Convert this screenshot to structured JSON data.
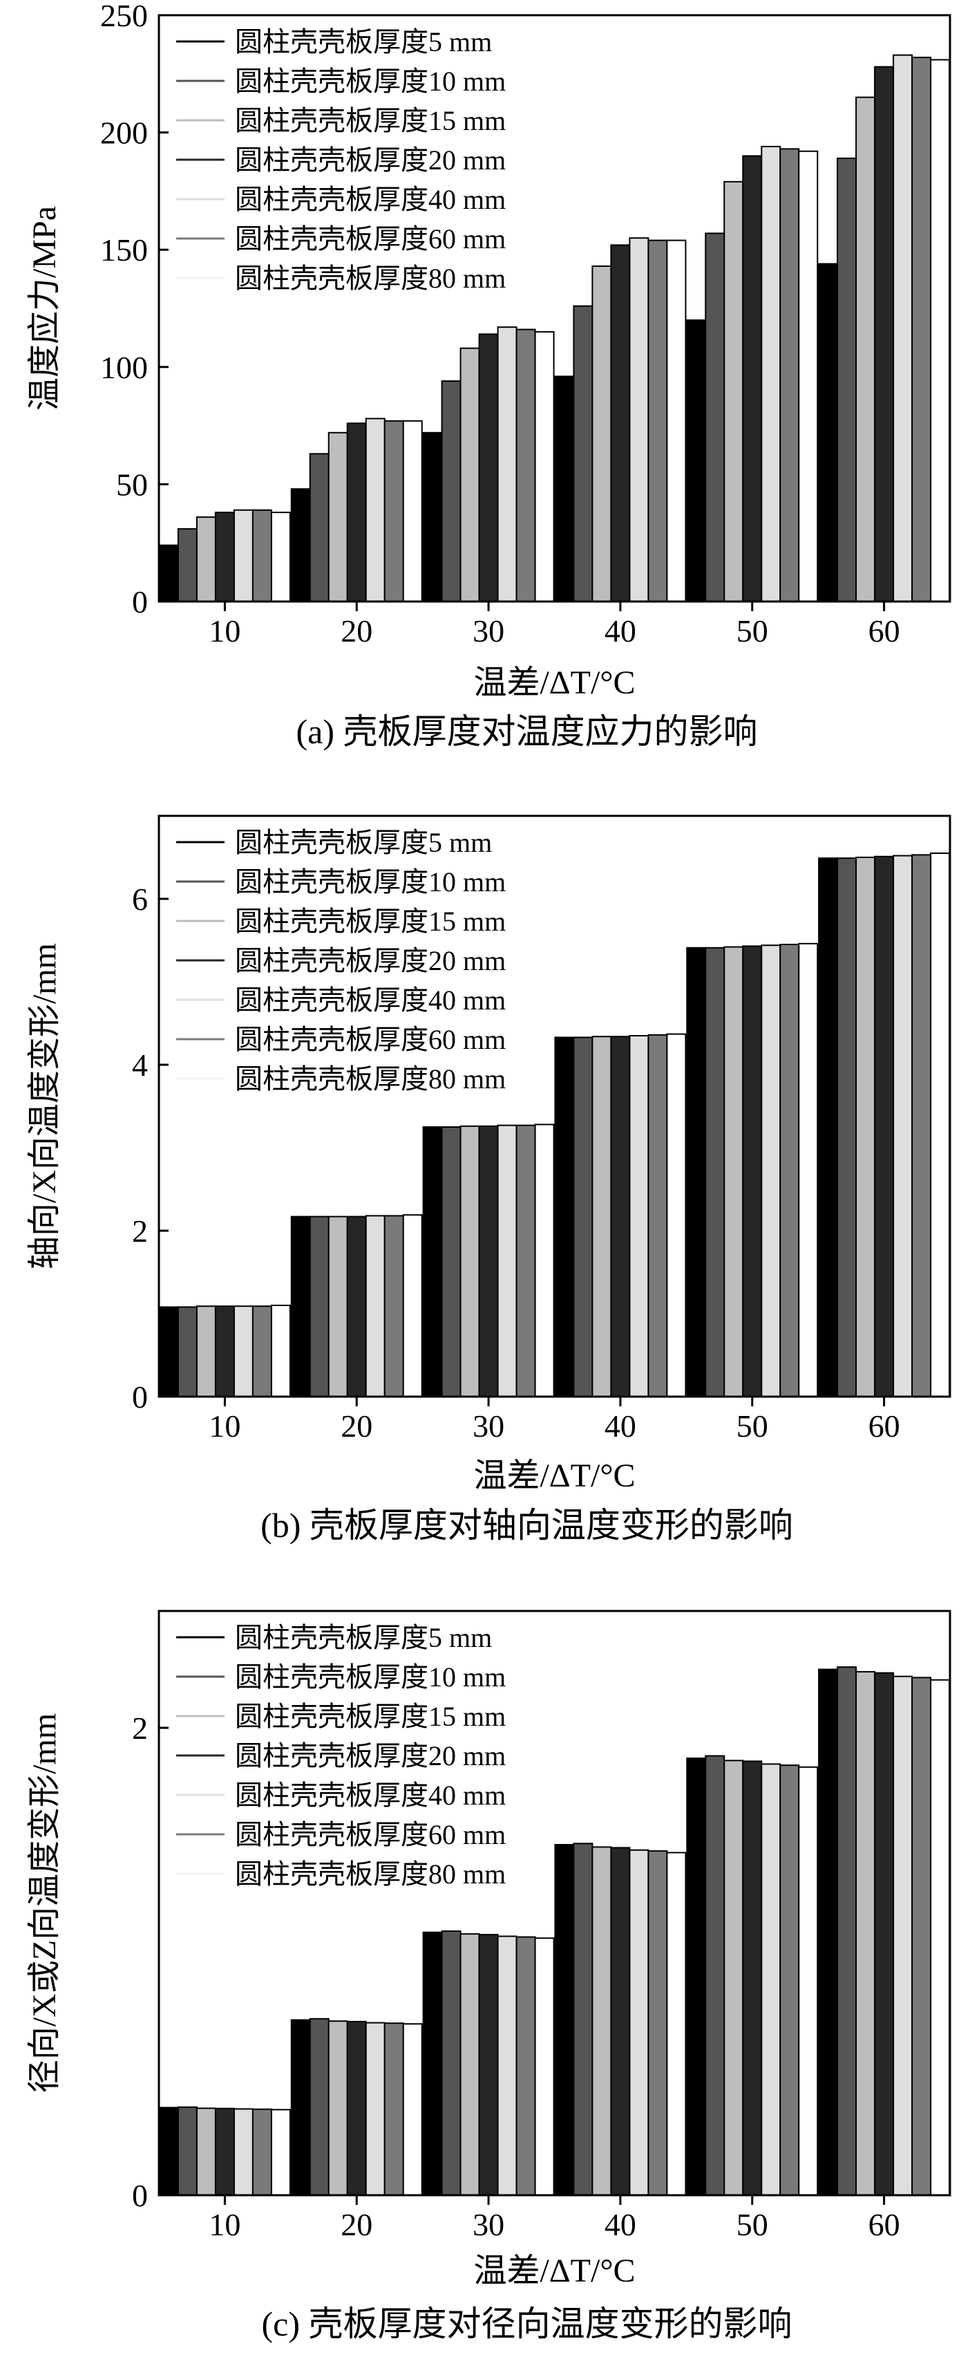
{
  "chart_data": [
    {
      "type": "bar",
      "caption": "(a) 壳板厚度对温度应力的影响",
      "xlabel": "温差/ΔT/°C",
      "ylabel": "温度应力/MPa",
      "ylim": [
        0,
        250
      ],
      "yticks": [
        0,
        50,
        100,
        150,
        200,
        250
      ],
      "categories": [
        "10",
        "20",
        "30",
        "40",
        "50",
        "60"
      ],
      "legend_position": "top-left",
      "series": [
        {
          "name": "圆柱壳壳板厚度5 mm",
          "color": "#000000",
          "values": [
            24,
            48,
            72,
            96,
            120,
            144
          ]
        },
        {
          "name": "圆柱壳壳板厚度10 mm",
          "color": "#555555",
          "values": [
            31,
            63,
            94,
            126,
            157,
            189
          ]
        },
        {
          "name": "圆柱壳壳板厚度15 mm",
          "color": "#bdbdbd",
          "values": [
            36,
            72,
            108,
            143,
            179,
            215
          ]
        },
        {
          "name": "圆柱壳壳板厚度20 mm",
          "color": "#262626",
          "values": [
            38,
            76,
            114,
            152,
            190,
            228
          ]
        },
        {
          "name": "圆柱壳壳板厚度40 mm",
          "color": "#dedede",
          "values": [
            39,
            78,
            117,
            155,
            194,
            233
          ]
        },
        {
          "name": "圆柱壳壳板厚度60 mm",
          "color": "#7a7a7a",
          "values": [
            39,
            77,
            116,
            154,
            193,
            232
          ]
        },
        {
          "name": "圆柱壳壳板厚度80 mm",
          "color": "#ffffff",
          "values": [
            38,
            77,
            115,
            154,
            192,
            231
          ]
        }
      ]
    },
    {
      "type": "bar",
      "caption": "(b) 壳板厚度对轴向温度变形的影响",
      "xlabel": "温差/ΔT/°C",
      "ylabel": "轴向/X向温度变形/mm",
      "ylim": [
        0,
        7
      ],
      "yticks": [
        0,
        2,
        4,
        6
      ],
      "categories": [
        "10",
        "20",
        "30",
        "40",
        "50",
        "60"
      ],
      "legend_position": "top-left",
      "series": [
        {
          "name": "圆柱壳壳板厚度5 mm",
          "color": "#000000",
          "values": [
            1.08,
            2.17,
            3.25,
            4.33,
            5.41,
            6.49
          ]
        },
        {
          "name": "圆柱壳壳板厚度10 mm",
          "color": "#555555",
          "values": [
            1.08,
            2.17,
            3.25,
            4.33,
            5.41,
            6.49
          ]
        },
        {
          "name": "圆柱壳壳板厚度15 mm",
          "color": "#bdbdbd",
          "values": [
            1.09,
            2.17,
            3.26,
            4.34,
            5.42,
            6.5
          ]
        },
        {
          "name": "圆柱壳壳板厚度20 mm",
          "color": "#262626",
          "values": [
            1.09,
            2.17,
            3.26,
            4.34,
            5.43,
            6.51
          ]
        },
        {
          "name": "圆柱壳壳板厚度40 mm",
          "color": "#dedede",
          "values": [
            1.09,
            2.18,
            3.27,
            4.35,
            5.44,
            6.52
          ]
        },
        {
          "name": "圆柱壳壳板厚度60 mm",
          "color": "#7a7a7a",
          "values": [
            1.09,
            2.18,
            3.27,
            4.36,
            5.45,
            6.53
          ]
        },
        {
          "name": "圆柱壳壳板厚度80 mm",
          "color": "#ffffff",
          "values": [
            1.1,
            2.19,
            3.28,
            4.37,
            5.46,
            6.55
          ]
        }
      ]
    },
    {
      "type": "bar",
      "caption": "(c) 壳板厚度对径向温度变形的影响",
      "xlabel": "温差/ΔT/°C",
      "ylabel": "径向/X或Z向温度变形/mm",
      "ylim": [
        0,
        2.5
      ],
      "yticks": [
        0,
        2
      ],
      "categories": [
        "10",
        "20",
        "30",
        "40",
        "50",
        "60"
      ],
      "legend_position": "top-left",
      "series": [
        {
          "name": "圆柱壳壳板厚度5 mm",
          "color": "#000000",
          "values": [
            0.375,
            0.75,
            1.125,
            1.5,
            1.87,
            2.25
          ]
        },
        {
          "name": "圆柱壳壳板厚度10 mm",
          "color": "#555555",
          "values": [
            0.377,
            0.755,
            1.13,
            1.505,
            1.88,
            2.26
          ]
        },
        {
          "name": "圆柱壳壳板厚度15 mm",
          "color": "#bdbdbd",
          "values": [
            0.372,
            0.745,
            1.118,
            1.49,
            1.86,
            2.24
          ]
        },
        {
          "name": "圆柱壳壳板厚度20 mm",
          "color": "#262626",
          "values": [
            0.371,
            0.743,
            1.115,
            1.487,
            1.857,
            2.235
          ]
        },
        {
          "name": "圆柱壳壳板厚度40 mm",
          "color": "#dedede",
          "values": [
            0.369,
            0.738,
            1.108,
            1.477,
            1.845,
            2.22
          ]
        },
        {
          "name": "圆柱壳壳板厚度60 mm",
          "color": "#7a7a7a",
          "values": [
            0.368,
            0.736,
            1.105,
            1.473,
            1.84,
            2.215
          ]
        },
        {
          "name": "圆柱壳壳板厚度80 mm",
          "color": "#ffffff",
          "values": [
            0.366,
            0.733,
            1.1,
            1.466,
            1.832,
            2.205
          ]
        }
      ]
    }
  ]
}
